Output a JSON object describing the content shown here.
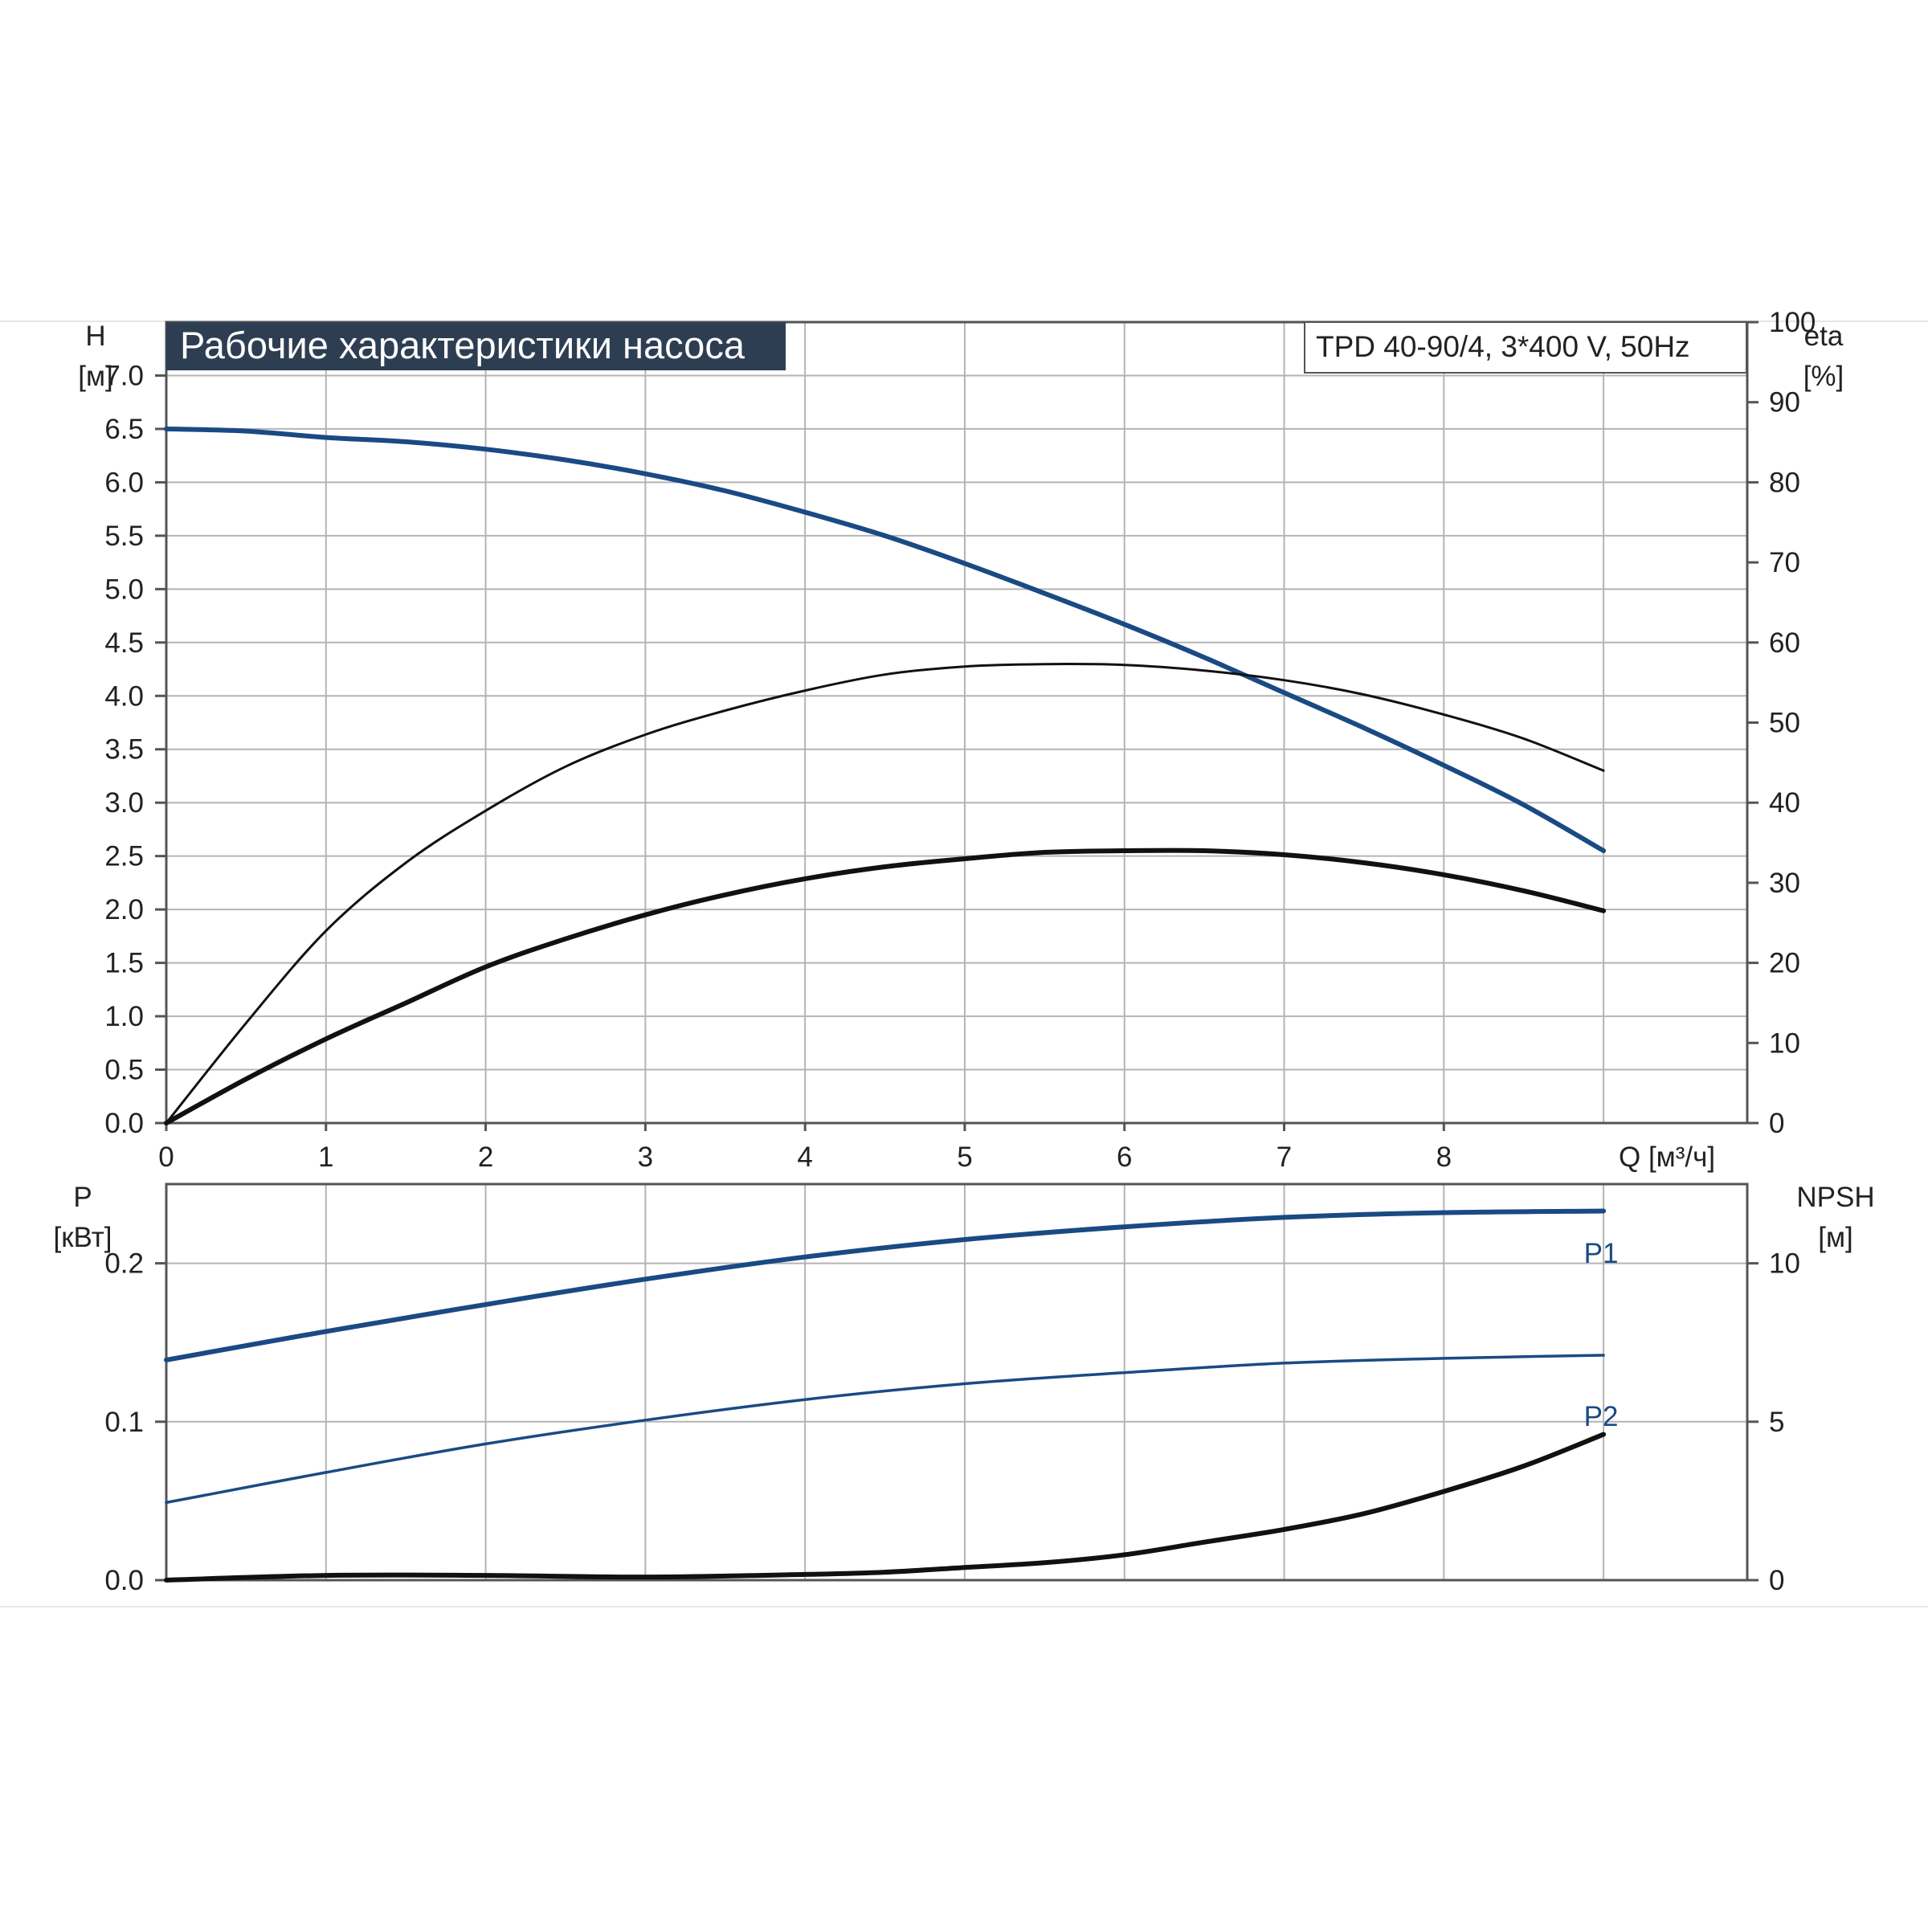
{
  "colors": {
    "title_bg": "#2e3e52",
    "blue_curve": "#1a4a84",
    "black_curve": "#111111",
    "grid": "#b4b4b4",
    "frame": "#555555"
  },
  "header": {
    "title": "Рабочие характеристики насоса",
    "model": "TPD 40-90/4, 3*400 V, 50Hz"
  },
  "chart_data": [
    {
      "type": "line",
      "panel": "top",
      "title": "Рабочие характеристики насоса",
      "subtitle": "TPD 40-90/4, 3*400 V, 50Hz",
      "xlabel": "Q [м³/ч]",
      "ylabel_left": [
        "H",
        "[м]"
      ],
      "ylabel_right": [
        "eta",
        "[%]"
      ],
      "xlim": [
        0,
        9.9
      ],
      "ylim_left": [
        0,
        7.5
      ],
      "ylim_right": [
        0,
        100
      ],
      "x_ticks": [
        "0",
        "1",
        "2",
        "3",
        "4",
        "5",
        "6",
        "7",
        "8"
      ],
      "y_ticks_left": [
        "0.0",
        "0.5",
        "1.0",
        "1.5",
        "2.0",
        "2.5",
        "3.0",
        "3.5",
        "4.0",
        "4.5",
        "5.0",
        "5.5",
        "6.0",
        "6.5",
        "7.0"
      ],
      "y_ticks_right": [
        "0",
        "10",
        "20",
        "30",
        "40",
        "50",
        "60",
        "70",
        "80",
        "90",
        "100"
      ],
      "grid": true,
      "series": [
        {
          "axis": "left",
          "style": "blue-thick",
          "x": [
            0,
            0.5,
            1,
            1.5,
            2,
            2.5,
            3,
            3.5,
            4,
            4.5,
            5,
            5.5,
            6,
            6.5,
            7,
            7.5,
            8,
            8.5,
            9
          ],
          "y": [
            6.5,
            6.48,
            6.42,
            6.38,
            6.31,
            6.21,
            6.08,
            5.92,
            5.72,
            5.5,
            5.24,
            4.96,
            4.67,
            4.36,
            4.03,
            3.7,
            3.35,
            2.98,
            2.55
          ]
        },
        {
          "axis": "right",
          "style": "black-thin",
          "x": [
            0,
            0.5,
            1,
            1.5,
            2,
            2.5,
            3,
            3.5,
            4,
            4.5,
            5,
            5.5,
            6,
            6.5,
            7,
            7.5,
            8,
            8.5,
            9
          ],
          "y": [
            0,
            12.5,
            24,
            32.5,
            39,
            44.5,
            48.5,
            51.5,
            54,
            56,
            57,
            57.3,
            57.2,
            56.5,
            55.3,
            53.5,
            51,
            48,
            44
          ]
        },
        {
          "axis": "right",
          "style": "black-thick",
          "x": [
            0,
            0.5,
            1,
            1.5,
            2,
            2.5,
            3,
            3.5,
            4,
            4.5,
            5,
            5.5,
            6,
            6.5,
            7,
            7.5,
            8,
            8.5,
            9
          ],
          "y": [
            0,
            5.5,
            10.5,
            15,
            19.5,
            23,
            26,
            28.5,
            30.5,
            32,
            33,
            33.8,
            34,
            34,
            33.5,
            32.5,
            31,
            29,
            26.5
          ]
        }
      ]
    },
    {
      "type": "line",
      "panel": "bottom",
      "ylabel_left": [
        "P",
        "[кВт]"
      ],
      "ylabel_right": [
        "NPSH",
        "[м]"
      ],
      "xlim": [
        0,
        9.9
      ],
      "ylim_left": [
        0,
        0.25
      ],
      "ylim_right": [
        0,
        12.5
      ],
      "y_ticks_left": [
        "0.0",
        "0.1",
        "0.2"
      ],
      "y_ticks_right": [
        "0",
        "5",
        "10"
      ],
      "grid": true,
      "series": [
        {
          "name": "P1",
          "axis": "left",
          "style": "blue-thick",
          "x": [
            0,
            1,
            2,
            3,
            4,
            5,
            6,
            7,
            8,
            9
          ],
          "y": [
            0.139,
            0.157,
            0.174,
            0.19,
            0.204,
            0.215,
            0.223,
            0.229,
            0.232,
            0.233
          ]
        },
        {
          "name": "P2",
          "axis": "left",
          "style": "blue-thin",
          "x": [
            0,
            1,
            2,
            3,
            4,
            5,
            6,
            7,
            8,
            9
          ],
          "y": [
            0.049,
            0.068,
            0.086,
            0.101,
            0.114,
            0.124,
            0.131,
            0.137,
            0.14,
            0.142
          ]
        },
        {
          "axis": "right",
          "style": "black-thick",
          "x": [
            0,
            1,
            2,
            3,
            4,
            4.5,
            5,
            5.5,
            6,
            6.5,
            7,
            7.5,
            8,
            8.5,
            9
          ],
          "y": [
            0,
            0.15,
            0.15,
            0.1,
            0.18,
            0.25,
            0.4,
            0.55,
            0.8,
            1.2,
            1.6,
            2.1,
            2.8,
            3.6,
            4.6
          ]
        }
      ]
    }
  ]
}
